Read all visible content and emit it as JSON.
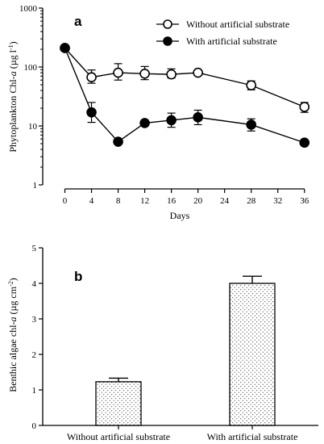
{
  "chart_data": [
    {
      "type": "line",
      "panel_label": "a",
      "xlabel": "Days",
      "ylabel_parts": [
        "Phytoplankton Chl-",
        "a",
        " (µg l",
        "-1",
        ")"
      ],
      "yscale": "log",
      "ylim": [
        1,
        1000
      ],
      "yticks": [
        1,
        10,
        100,
        1000
      ],
      "xlim": [
        -2,
        37
      ],
      "xticks": [
        0,
        4,
        8,
        12,
        16,
        20,
        24,
        28,
        32,
        36
      ],
      "legend_position": "top-right",
      "series": [
        {
          "name": "Without artificial substrate",
          "marker": "open-circle",
          "x": [
            0,
            4,
            8,
            12,
            16,
            20,
            28,
            36
          ],
          "y": [
            210,
            67,
            80,
            77,
            75,
            80,
            49,
            21
          ],
          "err_low": [
            188,
            53,
            60,
            61,
            65,
            80,
            41,
            17
          ],
          "err_high": [
            232,
            89,
            114,
            102,
            93,
            80,
            58,
            25
          ]
        },
        {
          "name": "With artificial substrate",
          "marker": "filled-circle",
          "x": [
            0,
            4,
            8,
            12,
            16,
            20,
            28,
            36
          ],
          "y": [
            210,
            17,
            5.4,
            11.2,
            12.5,
            14,
            10.5,
            5.2
          ],
          "err_low": [
            188,
            11.5,
            5.4,
            11.2,
            9.5,
            10.5,
            8.2,
            5.2
          ],
          "err_high": [
            232,
            25,
            5.4,
            11.2,
            16.5,
            18.5,
            13.2,
            5.2
          ]
        }
      ]
    },
    {
      "type": "bar",
      "panel_label": "b",
      "ylabel_parts": [
        "Benthic algae chl-",
        "a",
        " (µg cm",
        "-2",
        ")"
      ],
      "ylim": [
        0,
        5
      ],
      "yticks": [
        0,
        1,
        2,
        3,
        4,
        5
      ],
      "categories": [
        "Without artificial substrate",
        "With artificial substrate"
      ],
      "values": [
        1.23,
        4.0
      ],
      "errors": [
        0.1,
        0.2
      ],
      "fill_pattern": "stipple"
    }
  ]
}
